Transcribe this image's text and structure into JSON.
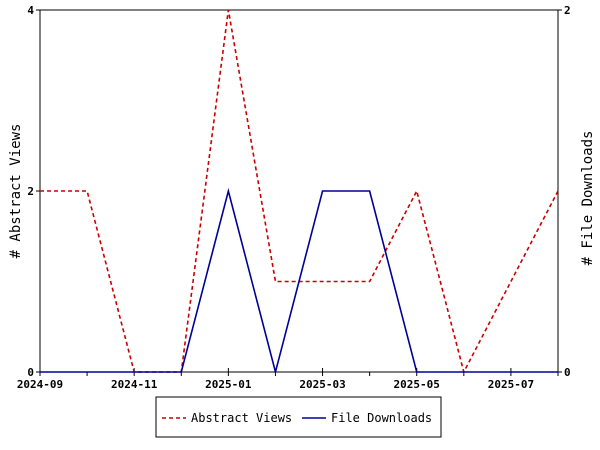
{
  "chart_data": {
    "type": "line",
    "x": [
      "2024-09",
      "2024-10",
      "2024-11",
      "2024-12",
      "2025-01",
      "2025-02",
      "2025-03",
      "2025-04",
      "2025-05",
      "2025-06",
      "2025-07",
      "2025-08"
    ],
    "x_tick_labels": [
      "2024-09",
      "2024-11",
      "2025-01",
      "2025-03",
      "2025-05",
      "2025-07"
    ],
    "series": [
      {
        "name": "Abstract Views",
        "axis": "left",
        "color": "#cc0000",
        "style": "dashed",
        "values": [
          2,
          2,
          0,
          0,
          4,
          1,
          1,
          1,
          2,
          0,
          1,
          2
        ]
      },
      {
        "name": "File Downloads",
        "axis": "right",
        "color": "#000099",
        "style": "solid",
        "values": [
          0,
          0,
          0,
          0,
          1,
          0,
          1,
          1,
          0,
          0,
          0,
          0
        ]
      }
    ],
    "ylabel": "# Abstract Views",
    "y2label": "# File Downloads",
    "ylim": [
      0,
      4
    ],
    "y2lim": [
      0,
      2
    ],
    "y_ticks": [
      0,
      2,
      4
    ],
    "y2_ticks": [
      0,
      2
    ],
    "grid": false,
    "legend_position": "bottom"
  }
}
